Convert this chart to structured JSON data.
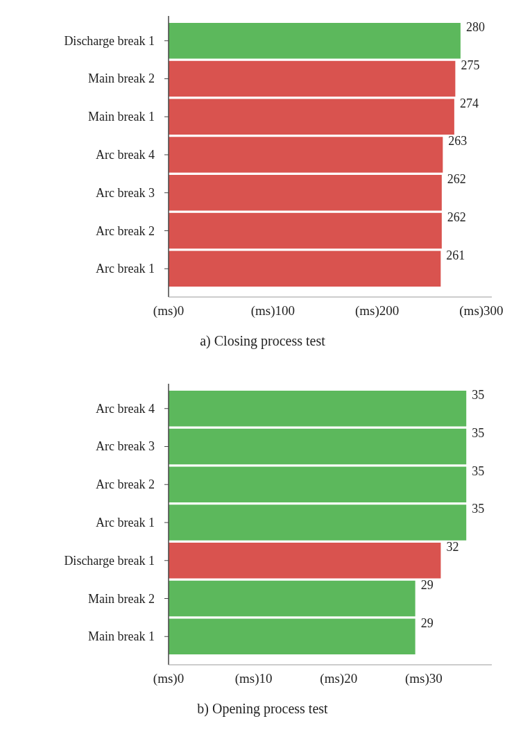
{
  "chart_data": [
    {
      "type": "bar",
      "orientation": "horizontal",
      "title": "a) Closing process test",
      "categories": [
        "Discharge break 1",
        "Main break 2",
        "Main break 1",
        "Arc break 4",
        "Arc break 3",
        "Arc break 2",
        "Arc break 1"
      ],
      "values": [
        280,
        275,
        274,
        263,
        262,
        262,
        261
      ],
      "colors": [
        "#5cb85c",
        "#d9534f",
        "#d9534f",
        "#d9534f",
        "#d9534f",
        "#d9534f",
        "#d9534f"
      ],
      "xlim": [
        0,
        310
      ],
      "xticks": [
        {
          "value": 0,
          "label": "(ms)0"
        },
        {
          "value": 100,
          "label": "(ms)100"
        },
        {
          "value": 200,
          "label": "(ms)200"
        },
        {
          "value": 300,
          "label": "(ms)300"
        }
      ],
      "data_labels": true
    },
    {
      "type": "bar",
      "orientation": "horizontal",
      "title": "b) Opening process test",
      "categories": [
        "Arc break 4",
        "Arc break 3",
        "Arc break 2",
        "Arc break 1",
        "Discharge break 1",
        "Main break 2",
        "Main break 1"
      ],
      "values": [
        35,
        35,
        35,
        35,
        32,
        29,
        29
      ],
      "colors": [
        "#5cb85c",
        "#5cb85c",
        "#5cb85c",
        "#5cb85c",
        "#d9534f",
        "#5cb85c",
        "#5cb85c"
      ],
      "xlim": [
        0,
        38
      ],
      "xticks": [
        {
          "value": 0,
          "label": "(ms)0"
        },
        {
          "value": 10,
          "label": "(ms)10"
        },
        {
          "value": 20,
          "label": "(ms)20"
        },
        {
          "value": 30,
          "label": "(ms)30"
        }
      ],
      "data_labels": true
    }
  ]
}
